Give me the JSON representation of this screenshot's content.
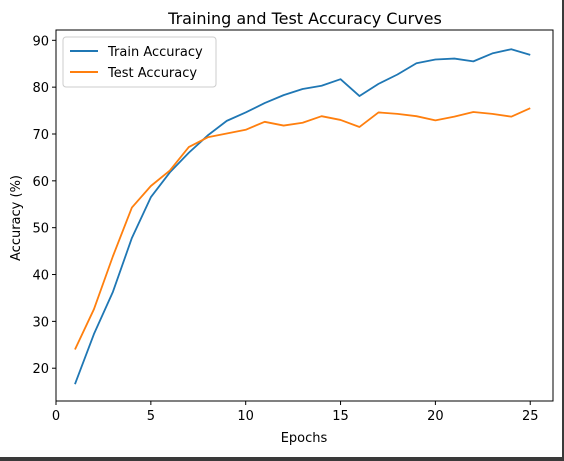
{
  "chart_data": {
    "type": "line",
    "title": "Training and Test Accuracy Curves",
    "xlabel": "Epochs",
    "ylabel": "Accuracy (%)",
    "xlim": [
      0,
      26.2
    ],
    "ylim": [
      13.0,
      92.2
    ],
    "xticks": [
      0,
      5,
      10,
      15,
      20,
      25
    ],
    "yticks": [
      20,
      30,
      40,
      50,
      60,
      70,
      80,
      90
    ],
    "grid": false,
    "legend_position": "top-left",
    "x": [
      1,
      2,
      3,
      4,
      5,
      6,
      7,
      8,
      9,
      10,
      11,
      12,
      13,
      14,
      15,
      16,
      17,
      18,
      19,
      20,
      21,
      22,
      23,
      24,
      25
    ],
    "series": [
      {
        "name": "Train Accuracy",
        "color": "#1f77b4",
        "values": [
          16.6,
          27.3,
          36.3,
          47.8,
          56.5,
          61.8,
          66.0,
          69.7,
          72.8,
          74.6,
          76.6,
          78.3,
          79.6,
          80.3,
          81.7,
          78.1,
          80.7,
          82.7,
          85.1,
          85.9,
          86.1,
          85.5,
          87.2,
          88.1,
          86.9
        ]
      },
      {
        "name": "Test Accuracy",
        "color": "#ff7f0e",
        "values": [
          24.0,
          32.6,
          43.9,
          54.3,
          58.9,
          62.2,
          67.2,
          69.3,
          70.1,
          70.9,
          72.6,
          71.8,
          72.4,
          73.8,
          73.0,
          71.5,
          74.6,
          74.3,
          73.8,
          72.9,
          73.7,
          74.7,
          74.3,
          73.7,
          75.5
        ]
      }
    ]
  }
}
